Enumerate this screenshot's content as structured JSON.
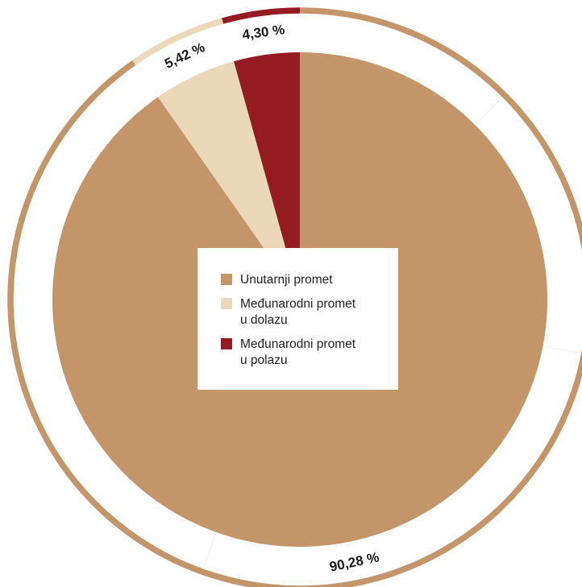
{
  "chart_data": {
    "type": "pie",
    "title": "",
    "slices": [
      {
        "name": "Unutarnji promet",
        "value": 90.28,
        "label": "90,28 %",
        "color": "#c5956a"
      },
      {
        "name": "Međunarodni promet\nu dolazu",
        "value": 5.42,
        "label": "5,42 %",
        "color": "#ead8b8"
      },
      {
        "name": "Međunarodni promet\nu polazu",
        "value": 4.3,
        "label": "4,30 %",
        "color": "#951a21"
      }
    ],
    "legend_position": "center",
    "outer_ring": true
  }
}
